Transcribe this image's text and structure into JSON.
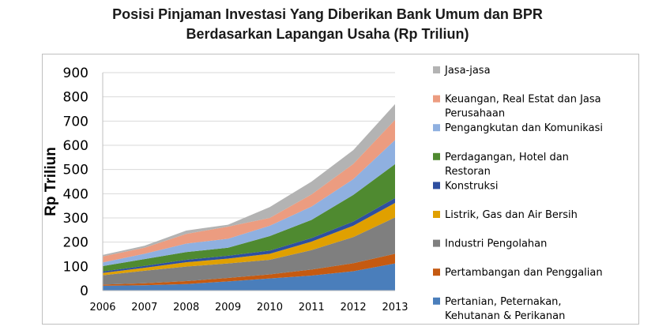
{
  "chart_data": {
    "type": "area",
    "stacked": true,
    "title_line1": "Posisi Pinjaman Investasi Yang Diberikan Bank Umum dan BPR",
    "title_line2": "Berdasarkan Lapangan Usaha (Rp Triliun)",
    "ylabel": "Rp Triliun",
    "xlabel": "",
    "x": [
      "2006",
      "2007",
      "2008",
      "2009",
      "2010",
      "2011",
      "2012",
      "2013"
    ],
    "ylim": [
      0,
      900
    ],
    "yticks": [
      "0",
      "100",
      "200",
      "300",
      "400",
      "500",
      "600",
      "700",
      "800",
      "900"
    ],
    "grid": "horizontal",
    "legend_position": "right",
    "series": [
      {
        "name": "Pertanian, Peternakan, Kehutanan & Perikanan",
        "color": "#4a7ebb",
        "values": [
          20,
          22,
          27,
          38,
          50,
          62,
          80,
          112
        ]
      },
      {
        "name": "Pertambangan dan Penggalian",
        "color": "#c55a11",
        "values": [
          5,
          8,
          12,
          14,
          17,
          25,
          33,
          40
        ]
      },
      {
        "name": "Industri Pengolahan",
        "color": "#7f7f7f",
        "values": [
          38,
          52,
          60,
          60,
          60,
          80,
          108,
          150
        ]
      },
      {
        "name": "Listrik, Gas dan Air Bersih",
        "color": "#e0a000",
        "values": [
          10,
          12,
          18,
          20,
          25,
          35,
          47,
          60
        ]
      },
      {
        "name": "Konstruksi",
        "color": "#2e4fa0",
        "values": [
          6,
          8,
          10,
          12,
          13,
          15,
          17,
          20
        ]
      },
      {
        "name": "Perdagangan, Hotel dan Restoran",
        "color": "#4f8a30",
        "values": [
          22,
          28,
          32,
          33,
          60,
          75,
          110,
          140
        ]
      },
      {
        "name": "Pengangkutan dan Komunikasi",
        "color": "#8fb0e0",
        "values": [
          15,
          22,
          35,
          37,
          43,
          55,
          65,
          100
        ]
      },
      {
        "name": "Keuangan, Real Estat dan Jasa Perusahaan",
        "color": "#ec9c80",
        "values": [
          25,
          25,
          40,
          50,
          32,
          50,
          63,
          83
        ]
      },
      {
        "name": "Jasa-jasa",
        "color": "#b3b3b3",
        "values": [
          6,
          8,
          14,
          8,
          45,
          53,
          57,
          65
        ]
      }
    ]
  }
}
